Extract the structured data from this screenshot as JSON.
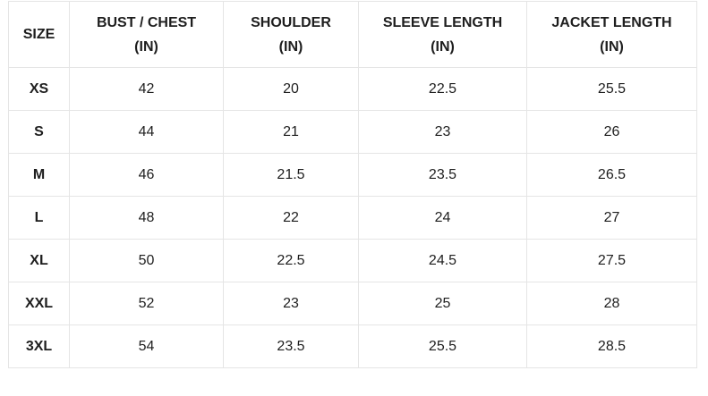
{
  "headers": [
    [
      "SIZE",
      ""
    ],
    [
      "BUST / CHEST",
      "(IN)"
    ],
    [
      "SHOULDER",
      "(IN)"
    ],
    [
      "SLEEVE LENGTH",
      "(IN)"
    ],
    [
      "JACKET LENGTH",
      "(IN)"
    ]
  ],
  "rows": [
    [
      "XS",
      "42",
      "20",
      "22.5",
      "25.5"
    ],
    [
      "S",
      "44",
      "21",
      "23",
      "26"
    ],
    [
      "M",
      "46",
      "21.5",
      "23.5",
      "26.5"
    ],
    [
      "L",
      "48",
      "22",
      "24",
      "27"
    ],
    [
      "XL",
      "50",
      "22.5",
      "24.5",
      "27.5"
    ],
    [
      "XXL",
      "52",
      "23",
      "25",
      "28"
    ],
    [
      "3XL",
      "54",
      "23.5",
      "25.5",
      "28.5"
    ]
  ]
}
